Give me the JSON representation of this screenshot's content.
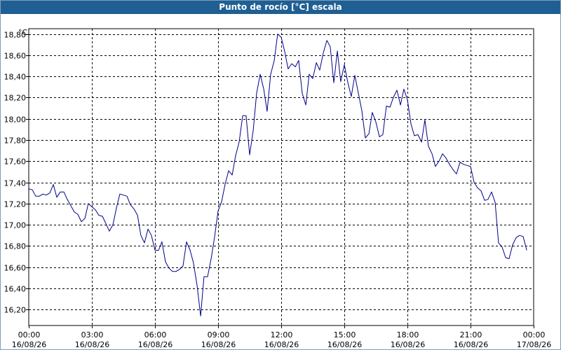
{
  "window": {
    "title": "Punto de rocío [°C] escala"
  },
  "chart_data": {
    "type": "line",
    "title": "Punto de rocío [°C] escala",
    "ylabel": "°C",
    "xlabel": "",
    "ylim": [
      16.05,
      18.85
    ],
    "xlim": [
      0,
      24
    ],
    "grid": true,
    "colors": {
      "line": "#00008b",
      "grid": "#000000",
      "background": "#ffffff"
    },
    "yticks": [
      "16,20",
      "16,40",
      "16,60",
      "16,80",
      "17,00",
      "17,20",
      "17,40",
      "17,60",
      "17,80",
      "18,00",
      "18,20",
      "18,40",
      "18,60",
      "18,80"
    ],
    "xticks": [
      {
        "time": "00:00",
        "date": "16/08/26"
      },
      {
        "time": "03:00",
        "date": "16/08/26"
      },
      {
        "time": "06:00",
        "date": "16/08/26"
      },
      {
        "time": "09:00",
        "date": "16/08/26"
      },
      {
        "time": "12:00",
        "date": "16/08/26"
      },
      {
        "time": "15:00",
        "date": "16/08/26"
      },
      {
        "time": "18:00",
        "date": "16/08/26"
      },
      {
        "time": "21:00",
        "date": "16/08/26"
      },
      {
        "time": "00:00",
        "date": "17/08/26"
      }
    ],
    "series": [
      {
        "x": [
          0.0,
          0.17,
          0.33,
          0.5,
          0.67,
          0.83,
          1.0,
          1.17,
          1.33,
          1.5,
          1.67,
          1.83,
          2.0,
          2.17,
          2.33,
          2.5,
          2.67,
          2.83,
          3.0,
          3.17,
          3.33,
          3.5,
          3.67,
          3.83,
          4.0,
          4.17,
          4.33,
          4.5,
          4.67,
          4.83,
          5.0,
          5.17,
          5.33,
          5.5,
          5.67,
          5.83,
          6.0,
          6.17,
          6.33,
          6.5,
          6.67,
          6.83,
          7.0,
          7.17,
          7.33,
          7.5,
          7.67,
          7.83,
          8.0,
          8.17,
          8.33,
          8.5,
          8.67,
          8.83,
          9.0,
          9.17,
          9.33,
          9.5,
          9.67,
          9.83,
          10.0,
          10.17,
          10.33,
          10.5,
          10.67,
          10.83,
          11.0,
          11.17,
          11.33,
          11.5,
          11.67,
          11.83,
          12.0,
          12.17,
          12.33,
          12.5,
          12.67,
          12.83,
          13.0,
          13.17,
          13.33,
          13.5,
          13.67,
          13.83,
          14.0,
          14.17,
          14.33,
          14.5,
          14.67,
          14.83,
          15.0,
          15.17,
          15.33,
          15.5,
          15.67,
          15.83,
          16.0,
          16.17,
          16.33,
          16.5,
          16.67,
          16.83,
          17.0,
          17.17,
          17.33,
          17.5,
          17.67,
          17.83,
          18.0,
          18.17,
          18.33,
          18.5,
          18.67,
          18.83,
          19.0,
          19.17,
          19.33,
          19.5,
          19.67,
          19.83,
          20.0,
          20.17,
          20.33,
          20.5,
          20.67,
          20.83,
          21.0,
          21.17,
          21.33,
          21.5,
          21.67,
          21.83,
          22.0,
          22.17,
          22.33,
          22.5,
          22.67,
          22.83,
          23.0,
          23.17,
          23.33,
          23.5,
          23.67
        ],
        "values": [
          17.34,
          17.33,
          17.27,
          17.27,
          17.29,
          17.28,
          17.3,
          17.38,
          17.26,
          17.31,
          17.31,
          17.24,
          17.18,
          17.12,
          17.1,
          17.03,
          17.06,
          17.2,
          17.17,
          17.14,
          17.09,
          17.08,
          17.01,
          16.94,
          17.0,
          17.16,
          17.29,
          17.28,
          17.27,
          17.19,
          17.15,
          17.09,
          16.9,
          16.83,
          16.96,
          16.9,
          16.76,
          16.76,
          16.84,
          16.65,
          16.59,
          16.56,
          16.56,
          16.58,
          16.61,
          16.84,
          16.76,
          16.64,
          16.43,
          16.14,
          16.51,
          16.51,
          16.68,
          16.88,
          17.13,
          17.22,
          17.38,
          17.51,
          17.47,
          17.65,
          17.78,
          18.03,
          18.03,
          17.66,
          17.89,
          18.24,
          18.42,
          18.28,
          18.07,
          18.42,
          18.55,
          18.8,
          18.77,
          18.63,
          18.47,
          18.52,
          18.49,
          18.55,
          18.24,
          18.13,
          18.42,
          18.38,
          18.53,
          18.46,
          18.62,
          18.74,
          18.68,
          18.34,
          18.64,
          18.35,
          18.51,
          18.34,
          18.21,
          18.41,
          18.24,
          18.08,
          17.82,
          17.86,
          18.06,
          17.97,
          17.83,
          17.85,
          18.12,
          18.11,
          18.2,
          18.27,
          18.13,
          18.28,
          18.18,
          17.95,
          17.84,
          17.85,
          17.78,
          17.99,
          17.74,
          17.67,
          17.55,
          17.6,
          17.67,
          17.63,
          17.57,
          17.52,
          17.48,
          17.59,
          17.57,
          17.56,
          17.55,
          17.4,
          17.35,
          17.32,
          17.23,
          17.24,
          17.31,
          17.21,
          16.83,
          16.79,
          16.69,
          16.68,
          16.81,
          16.88,
          16.9,
          16.89,
          16.76
        ]
      }
    ]
  }
}
